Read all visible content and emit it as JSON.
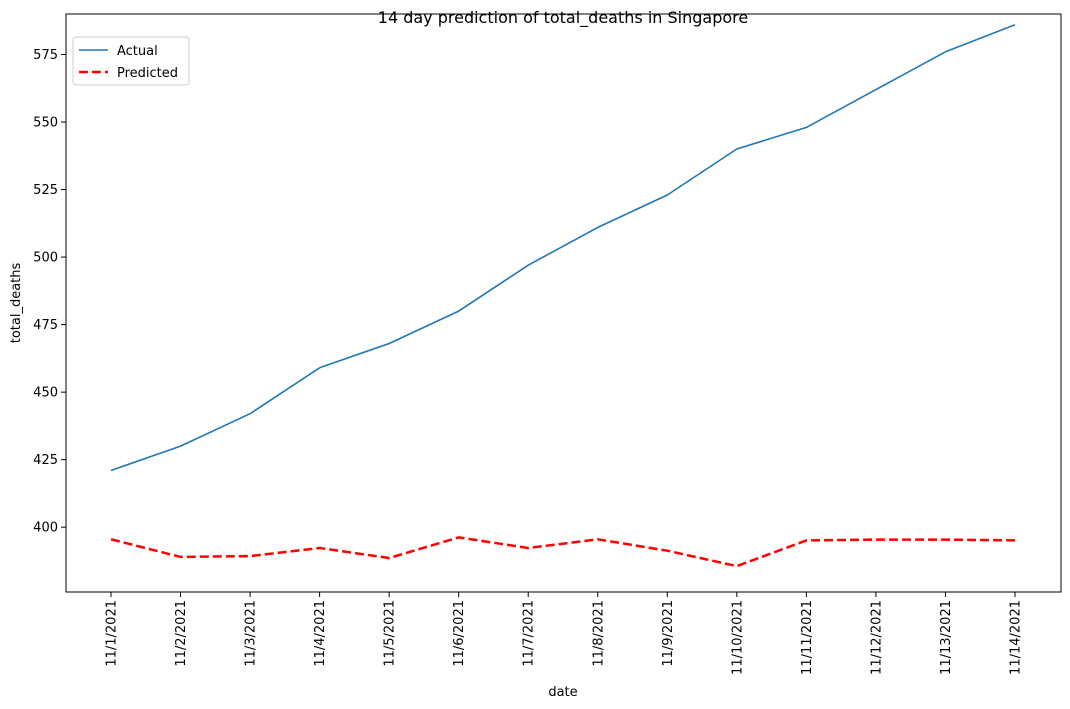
{
  "chart_data": {
    "type": "line",
    "title": "14 day prediction of total_deaths in Singapore",
    "xlabel": "date",
    "ylabel": "total_deaths",
    "x": [
      "11/1/2021",
      "11/2/2021",
      "11/3/2021",
      "11/4/2021",
      "11/5/2021",
      "11/6/2021",
      "11/7/2021",
      "11/8/2021",
      "11/9/2021",
      "11/10/2021",
      "11/11/2021",
      "11/12/2021",
      "11/13/2021",
      "11/14/2021"
    ],
    "y_ticks": [
      400,
      425,
      450,
      475,
      500,
      525,
      550,
      575
    ],
    "ylim": [
      376,
      590
    ],
    "grid": false,
    "legend_position": "top-left",
    "series": [
      {
        "name": "Actual",
        "color": "#1f77b4",
        "style": "solid",
        "values": [
          421,
          430,
          442,
          459,
          468,
          480,
          497,
          511,
          523,
          540,
          548,
          562,
          576,
          586
        ]
      },
      {
        "name": "Predicted",
        "color": "#ff0000",
        "style": "dashed",
        "values": [
          395.5,
          389,
          389.3,
          392.3,
          388.6,
          396.2,
          392.3,
          395.5,
          391.3,
          385.6,
          395.1,
          395.4,
          395.4,
          395.1
        ]
      }
    ]
  }
}
